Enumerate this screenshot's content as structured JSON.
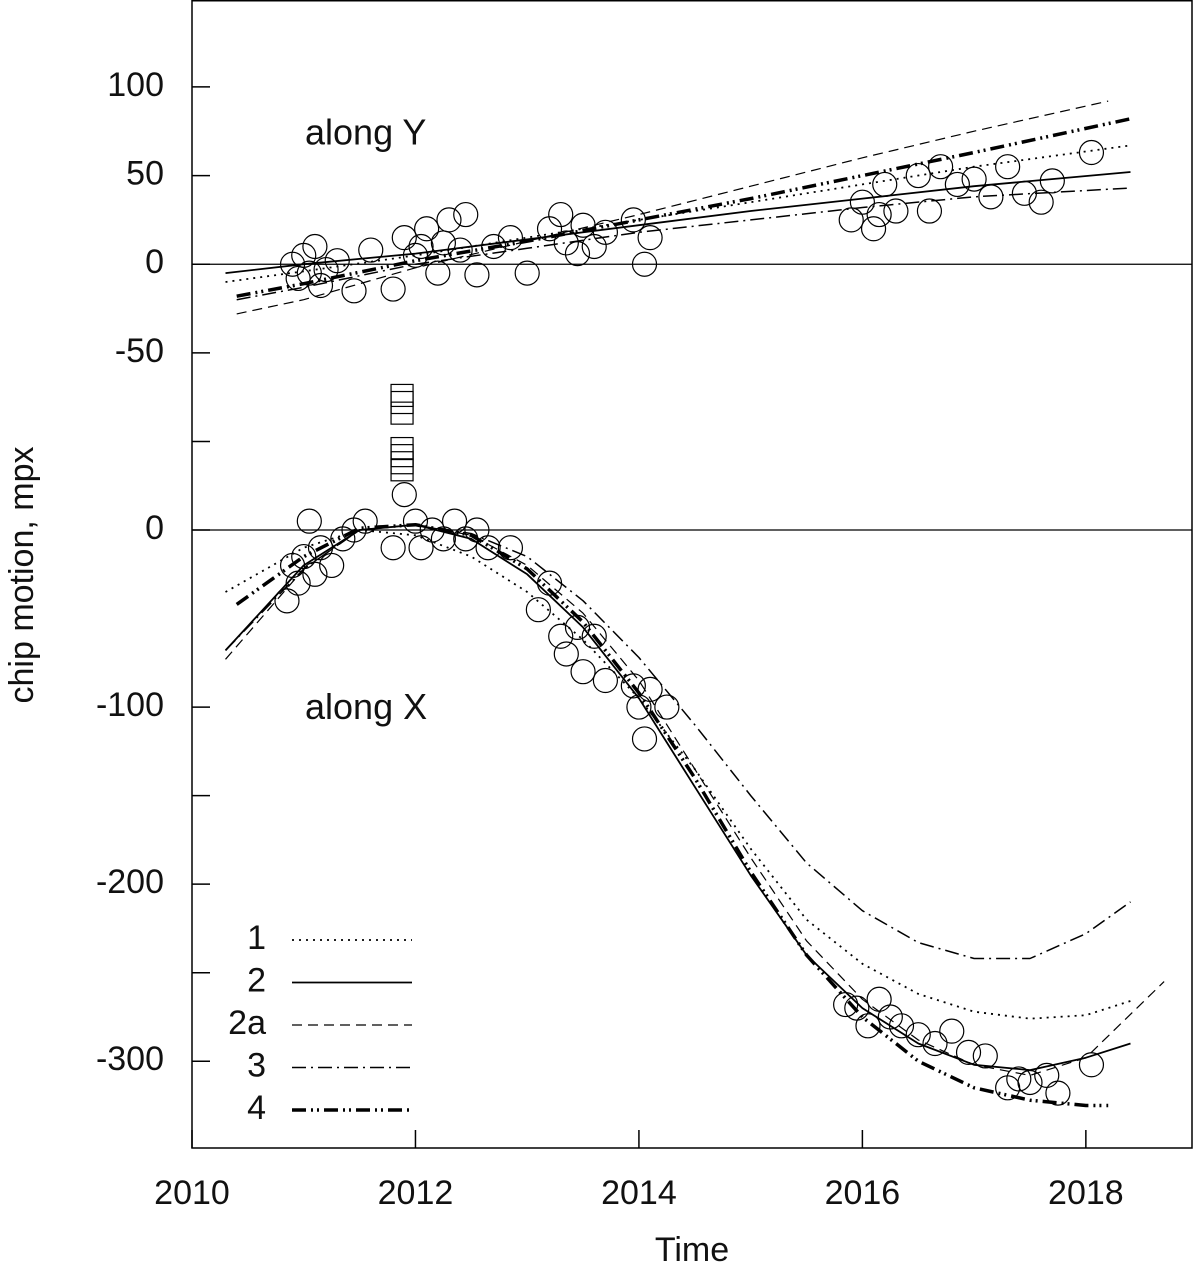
{
  "chart_data": [
    {
      "type": "line",
      "annotation": "along Y",
      "xlim": [
        2010,
        2018.95
      ],
      "ylim": [
        -65,
        149
      ],
      "yticks": [
        100,
        50,
        0,
        -50
      ],
      "zero_line": true,
      "points": {
        "marker": "circle",
        "x": [
          2010.9,
          2010.95,
          2011.0,
          2011.05,
          2011.1,
          2011.15,
          2011.2,
          2011.3,
          2011.45,
          2011.6,
          2011.8,
          2011.9,
          2012.0,
          2012.05,
          2012.1,
          2012.2,
          2012.25,
          2012.3,
          2012.4,
          2012.45,
          2012.55,
          2012.7,
          2012.85,
          2013.0,
          2013.2,
          2013.3,
          2013.35,
          2013.45,
          2013.5,
          2013.6,
          2013.7,
          2013.95,
          2014.05,
          2014.1,
          2015.9,
          2016.0,
          2016.1,
          2016.15,
          2016.2,
          2016.3,
          2016.5,
          2016.6,
          2016.7,
          2016.85,
          2017.0,
          2017.15,
          2017.3,
          2017.45,
          2017.6,
          2017.7,
          2018.05
        ],
        "values": [
          0,
          -8,
          5,
          -5,
          10,
          -12,
          -3,
          2,
          -15,
          8,
          -14,
          15,
          5,
          10,
          20,
          -5,
          12,
          25,
          8,
          28,
          -6,
          10,
          15,
          -5,
          20,
          28,
          12,
          6,
          22,
          10,
          18,
          25,
          0,
          15,
          25,
          35,
          20,
          28,
          45,
          30,
          50,
          30,
          55,
          45,
          48,
          38,
          55,
          40,
          35,
          47,
          63
        ]
      },
      "series": [
        {
          "dash": "2,5",
          "width": 1.8,
          "x": [
            2010.3,
            2011,
            2012,
            2013,
            2014,
            2015,
            2016,
            2017,
            2018.4
          ],
          "values": [
            -10,
            -4,
            5,
            15,
            25,
            35,
            45,
            55,
            67
          ]
        },
        {
          "dash": "none",
          "width": 1.8,
          "x": [
            2010.3,
            2011,
            2012,
            2013,
            2014,
            2015,
            2016,
            2017,
            2018.4
          ],
          "values": [
            -5,
            0,
            6,
            14,
            22,
            30,
            37,
            44,
            52
          ]
        },
        {
          "dash": "10,6",
          "width": 1.2,
          "x": [
            2010.4,
            2011,
            2012,
            2013,
            2014,
            2015,
            2016,
            2017,
            2018.2
          ],
          "values": [
            -28,
            -20,
            -2,
            13,
            28,
            44,
            60,
            75,
            92
          ]
        },
        {
          "dash": "14,5,2,5",
          "width": 1.5,
          "x": [
            2010.4,
            2011,
            2012,
            2013,
            2014,
            2015,
            2016,
            2017,
            2018.4
          ],
          "values": [
            -20,
            -13,
            0,
            9,
            18,
            25,
            32,
            38,
            43
          ]
        },
        {
          "dash": "14,5,2,4,2,5",
          "width": 3.5,
          "x": [
            2010.4,
            2011,
            2012,
            2013,
            2014,
            2015,
            2016,
            2017,
            2018.4
          ],
          "values": [
            -18,
            -11,
            2,
            13,
            25,
            37,
            50,
            63,
            82
          ]
        }
      ]
    },
    {
      "type": "line",
      "annotation": "along X",
      "xlabel": "Time",
      "ylabel": "chip motion, mpx",
      "xlim": [
        2010,
        2018.95
      ],
      "ylim": [
        -349,
        85
      ],
      "xticks": [
        2010,
        2012,
        2014,
        2016,
        2018
      ],
      "yticks": [
        0,
        -100,
        -200,
        -300
      ],
      "minor_yticks": [
        50,
        -150,
        -250
      ],
      "zero_line": true,
      "legend": "lower left",
      "points": {
        "marker": "circle",
        "x": [
          2010.85,
          2010.9,
          2010.95,
          2011.0,
          2011.05,
          2011.1,
          2011.15,
          2011.25,
          2011.35,
          2011.45,
          2011.55,
          2011.8,
          2011.9,
          2012.0,
          2012.05,
          2012.15,
          2012.25,
          2012.35,
          2012.45,
          2012.55,
          2012.65,
          2012.85,
          2013.1,
          2013.2,
          2013.3,
          2013.35,
          2013.45,
          2013.5,
          2013.6,
          2013.7,
          2013.95,
          2014.0,
          2014.05,
          2014.1,
          2014.25,
          2015.85,
          2015.95,
          2016.05,
          2016.15,
          2016.25,
          2016.35,
          2016.5,
          2016.65,
          2016.8,
          2016.95,
          2017.1,
          2017.3,
          2017.4,
          2017.5,
          2017.65,
          2017.75,
          2018.05
        ],
        "values": [
          -40,
          -20,
          -30,
          -15,
          5,
          -25,
          -10,
          -20,
          -5,
          0,
          5,
          -10,
          20,
          5,
          -10,
          0,
          -5,
          5,
          -5,
          0,
          -10,
          -10,
          -45,
          -30,
          -60,
          -70,
          -55,
          -80,
          -60,
          -85,
          -88,
          -100,
          -118,
          -90,
          -100,
          -268,
          -270,
          -280,
          -265,
          -275,
          -280,
          -285,
          -290,
          -283,
          -295,
          -297,
          -315,
          -310,
          -312,
          -308,
          -318,
          -302
        ]
      },
      "squares": {
        "marker": "square",
        "x": [
          2011.88,
          2011.88,
          2011.88,
          2011.88,
          2011.88,
          2011.88,
          2011.88
        ],
        "values": [
          76,
          72,
          66,
          46,
          42,
          38,
          34
        ]
      },
      "series": [
        {
          "name": "1",
          "dash": "2,5",
          "width": 1.8,
          "x": [
            2010.3,
            2011,
            2011.5,
            2012,
            2012.5,
            2013,
            2013.5,
            2014,
            2014.5,
            2015,
            2015.5,
            2016,
            2016.5,
            2017,
            2017.5,
            2018,
            2018.4
          ],
          "values": [
            -35,
            -10,
            0,
            -3,
            -15,
            -35,
            -62,
            -95,
            -135,
            -180,
            -220,
            -245,
            -262,
            -272,
            -276,
            -274,
            -266
          ]
        },
        {
          "name": "2",
          "dash": "none",
          "width": 1.8,
          "x": [
            2010.3,
            2011,
            2011.5,
            2012,
            2012.5,
            2013,
            2013.5,
            2014,
            2014.5,
            2015,
            2015.5,
            2016,
            2016.5,
            2017,
            2017.5,
            2018,
            2018.4
          ],
          "values": [
            -68,
            -20,
            0,
            3,
            -5,
            -25,
            -55,
            -95,
            -145,
            -195,
            -240,
            -270,
            -290,
            -302,
            -305,
            -298,
            -290
          ]
        },
        {
          "name": "2a",
          "dash": "10,6",
          "width": 1.2,
          "x": [
            2010.3,
            2011,
            2011.5,
            2012,
            2012.5,
            2013,
            2013.5,
            2014,
            2014.5,
            2015,
            2015.5,
            2016,
            2016.5,
            2017,
            2017.5,
            2018,
            2018.7
          ],
          "values": [
            -73,
            -22,
            0,
            3,
            -3,
            -20,
            -47,
            -85,
            -135,
            -185,
            -232,
            -265,
            -288,
            -302,
            -308,
            -298,
            -255
          ]
        },
        {
          "name": "3",
          "dash": "14,5,2,5",
          "width": 1.5,
          "x": [
            2010.3,
            2011,
            2011.5,
            2012,
            2012.5,
            2013,
            2013.5,
            2014,
            2014.5,
            2015,
            2015.5,
            2016,
            2016.5,
            2017,
            2017.5,
            2018,
            2018.4
          ],
          "values": [
            -68,
            -22,
            0,
            3,
            -2,
            -15,
            -40,
            -72,
            -110,
            -150,
            -188,
            -215,
            -233,
            -242,
            -242,
            -228,
            -210
          ]
        },
        {
          "name": "4",
          "dash": "14,5,2,4,2,5",
          "width": 3.5,
          "x": [
            2010.4,
            2011,
            2011.5,
            2012,
            2012.5,
            2013,
            2013.5,
            2014,
            2014.5,
            2015,
            2015.5,
            2016,
            2016.5,
            2017,
            2017.5,
            2018,
            2018.2
          ],
          "values": [
            -42,
            -15,
            1,
            3,
            -3,
            -22,
            -52,
            -92,
            -140,
            -193,
            -240,
            -275,
            -300,
            -315,
            -322,
            -325,
            -325
          ]
        }
      ]
    }
  ]
}
